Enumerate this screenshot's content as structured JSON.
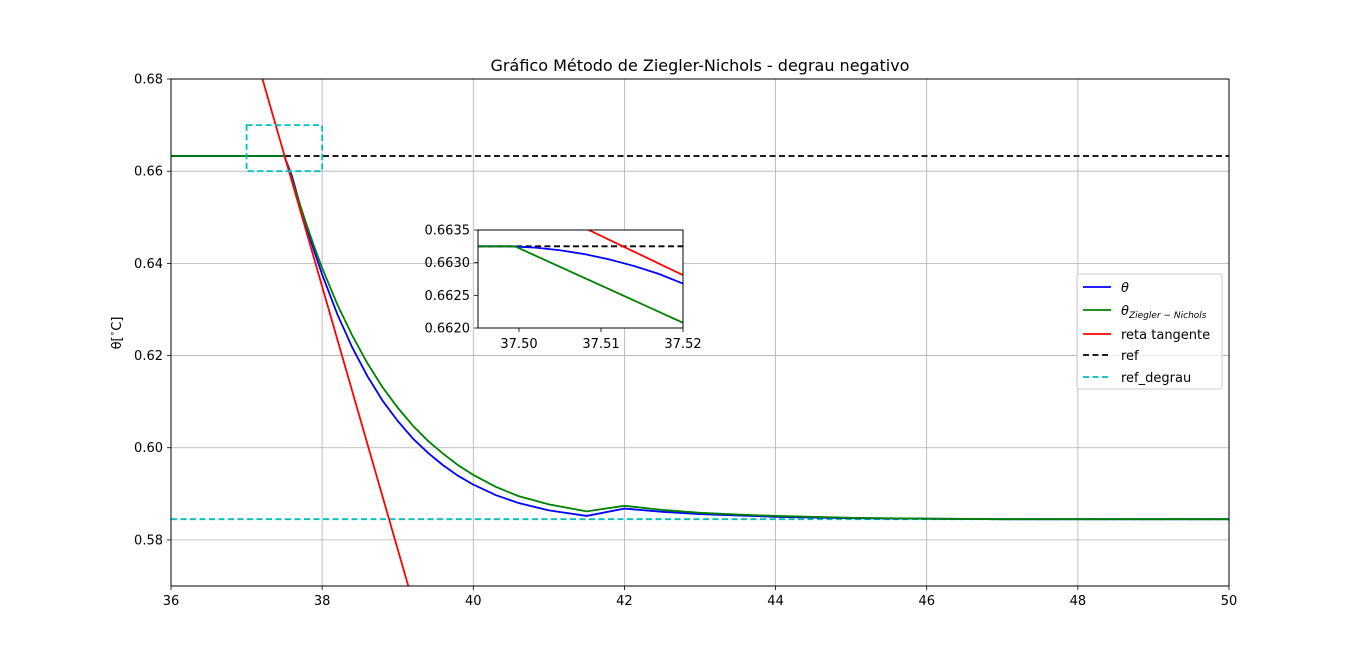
{
  "chart_data": {
    "type": "line",
    "title": "Gráfico Método de Ziegler-Nichols - degrau negativo",
    "xlabel": "",
    "ylabel_main": "θ[",
    "ylabel_sup": "∘",
    "ylabel_end": "C]",
    "xlim": [
      36,
      50
    ],
    "ylim": [
      0.57,
      0.68
    ],
    "xticks": [
      36,
      38,
      40,
      42,
      44,
      46,
      48,
      50
    ],
    "yticks": [
      0.58,
      0.6,
      0.62,
      0.64,
      0.66,
      0.68
    ],
    "xtick_labels": [
      "36",
      "38",
      "40",
      "42",
      "44",
      "46",
      "48",
      "50"
    ],
    "ytick_labels": [
      "0.58",
      "0.60",
      "0.62",
      "0.64",
      "0.66",
      "0.68"
    ],
    "grid": true,
    "legend_position": "center-right",
    "series": [
      {
        "name": "θ",
        "color": "#0000ff",
        "style": "solid",
        "x": [
          36,
          37.0,
          37.5,
          37.6,
          37.7,
          37.8,
          37.9,
          38.0,
          38.2,
          38.4,
          38.6,
          38.8,
          39.0,
          39.2,
          39.4,
          39.6,
          39.8,
          40.0,
          40.3,
          40.6,
          41.0,
          41.5,
          42.0,
          42.5,
          43.0,
          43.5,
          44.0,
          45.0,
          46.0,
          47.0,
          48.0,
          50.0
        ],
        "y": [
          0.6633,
          0.6633,
          0.6633,
          0.659,
          0.6531,
          0.6475,
          0.6424,
          0.6376,
          0.629,
          0.6217,
          0.6155,
          0.6102,
          0.6058,
          0.602,
          0.5989,
          0.5962,
          0.5939,
          0.592,
          0.5897,
          0.588,
          0.5864,
          0.5852,
          0.5868,
          0.5861,
          0.5856,
          0.5853,
          0.585,
          0.5847,
          0.5846,
          0.5845,
          0.5845,
          0.5845
        ]
      },
      {
        "name": "θ_{Ziegler−Nichols}",
        "label_base": "θ",
        "label_sub": "Ziegler − Nichols",
        "color": "#008000",
        "style": "solid",
        "x": [
          36,
          37.0,
          37.5,
          37.6,
          37.7,
          37.8,
          37.9,
          38.0,
          38.2,
          38.4,
          38.6,
          38.8,
          39.0,
          39.2,
          39.4,
          39.6,
          39.8,
          40.0,
          40.3,
          40.6,
          41.0,
          41.5,
          42.0,
          42.5,
          43.0,
          43.5,
          44.0,
          45.0,
          46.0,
          47.0,
          48.0,
          50.0
        ],
        "y": [
          0.6633,
          0.6633,
          0.6633,
          0.6583,
          0.6531,
          0.6481,
          0.6434,
          0.639,
          0.6311,
          0.6243,
          0.6183,
          0.6131,
          0.6087,
          0.6048,
          0.6015,
          0.5987,
          0.5962,
          0.5941,
          0.5915,
          0.5895,
          0.5877,
          0.5862,
          0.5874,
          0.5865,
          0.5859,
          0.5855,
          0.5852,
          0.5848,
          0.5846,
          0.5845,
          0.5845,
          0.5845
        ]
      },
      {
        "name": "reta tangente",
        "color": "#ff0000",
        "style": "solid",
        "x": [
          37.21,
          39.14
        ],
        "y": [
          0.68,
          0.57
        ]
      },
      {
        "name": "ref",
        "color": "#000000",
        "style": "dashed",
        "x": [
          36,
          50
        ],
        "y": [
          0.6633,
          0.6633
        ]
      },
      {
        "name": "ref_degrau",
        "color": "#00bfbf",
        "style": "dashed",
        "x": [
          36,
          50
        ],
        "y": [
          0.5845,
          0.5845
        ]
      }
    ],
    "zoom_box": {
      "color": "#00bfbf",
      "x": [
        37.0,
        38.0
      ],
      "y": [
        0.66,
        0.67
      ]
    },
    "inset": {
      "xlim": [
        37.495,
        37.52
      ],
      "ylim": [
        0.662,
        0.6635
      ],
      "xticks": [
        37.5,
        37.51,
        37.52
      ],
      "yticks": [
        0.662,
        0.6625,
        0.663,
        0.6635
      ],
      "xtick_labels": [
        "37.50",
        "37.51",
        "37.52"
      ],
      "ytick_labels": [
        "0.6620",
        "0.6625",
        "0.6630",
        "0.6635"
      ],
      "series": [
        {
          "name": "ref",
          "color": "#000000",
          "style": "dashed",
          "x": [
            37.495,
            37.52
          ],
          "y": [
            0.66325,
            0.66325
          ]
        },
        {
          "name": "reta tangente",
          "color": "#ff0000",
          "style": "solid",
          "x": [
            37.5085,
            37.52
          ],
          "y": [
            0.6635,
            0.66281
          ]
        },
        {
          "name": "θ",
          "color": "#0000ff",
          "style": "solid",
          "x": [
            37.495,
            37.497,
            37.499,
            37.502,
            37.505,
            37.508,
            37.511,
            37.514,
            37.517,
            37.52
          ],
          "y": [
            0.66325,
            0.66325,
            0.66325,
            0.66323,
            0.66319,
            0.66313,
            0.66305,
            0.66295,
            0.66283,
            0.66268
          ]
        },
        {
          "name": "θ_{Ziegler−Nichols}",
          "color": "#008000",
          "style": "solid",
          "x": [
            37.495,
            37.4995,
            37.52
          ],
          "y": [
            0.66325,
            0.66325,
            0.66208
          ]
        }
      ]
    }
  }
}
